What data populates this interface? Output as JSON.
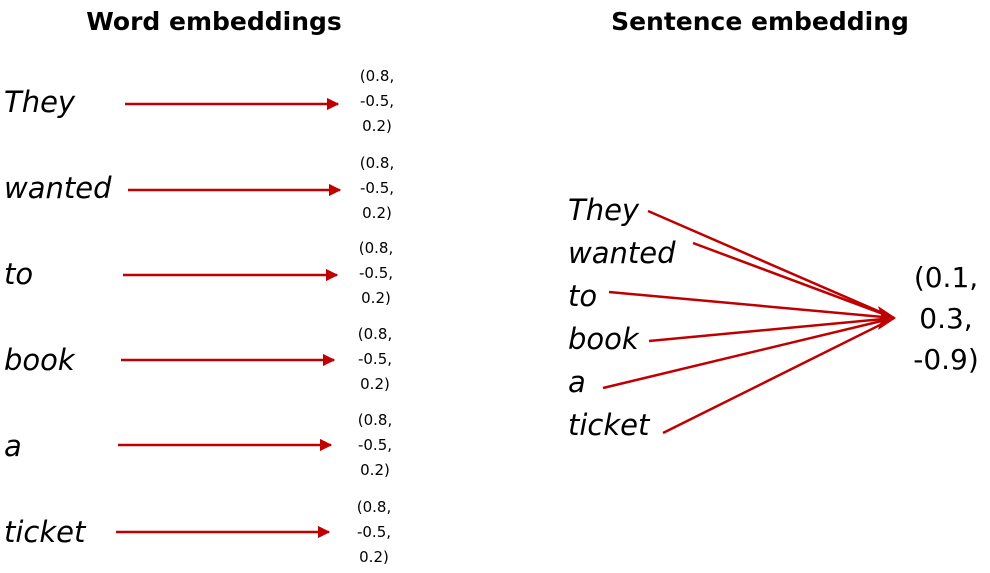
{
  "word_embeddings": {
    "title": "Word embeddings",
    "rows": [
      {
        "word": "They",
        "vector": [
          "(0.8,",
          "-0.5,",
          "0.2)"
        ]
      },
      {
        "word": "wanted",
        "vector": [
          "(0.8,",
          "-0.5,",
          "0.2)"
        ]
      },
      {
        "word": "to",
        "vector": [
          "(0.8,",
          "-0.5,",
          "0.2)"
        ]
      },
      {
        "word": "book",
        "vector": [
          "(0.8,",
          "-0.5,",
          "0.2)"
        ]
      },
      {
        "word": "a",
        "vector": [
          "(0.8,",
          "-0.5,",
          "0.2)"
        ]
      },
      {
        "word": "ticket",
        "vector": [
          "(0.8,",
          "-0.5,",
          "0.2)"
        ]
      }
    ]
  },
  "sentence_embedding": {
    "title": "Sentence embedding",
    "words": [
      "They",
      "wanted",
      "to",
      "book",
      "a",
      "ticket"
    ],
    "vector": [
      "(0.1,",
      "0.3,",
      "-0.9)"
    ]
  },
  "colors": {
    "arrow": "#c00000",
    "text": "#000000",
    "background": "#ffffff"
  }
}
